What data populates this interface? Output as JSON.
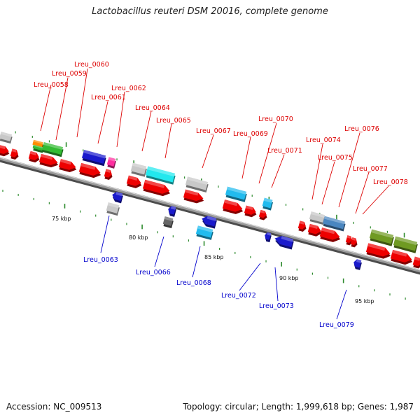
{
  "title": "Lactobacillus reuteri DSM 20016, complete genome",
  "footer": {
    "accession": "Accession: NC_009513",
    "summary": "Topology: circular; Length: 1,999,618 bp; Genes: 1,987"
  },
  "colors": {
    "forward_label": "#dd0000",
    "reverse_label": "#0000cc",
    "backbone": "#7a7a7a",
    "tick": "#2e8b2e"
  },
  "scale_labels": [
    "75 kbp",
    "80 kbp",
    "85 kbp",
    "90 kbp",
    "95 kbp"
  ],
  "forward_labels": [
    "Lreu_0058",
    "Lreu_0059",
    "Lreu_0060",
    "Lreu_0061",
    "Lreu_0062",
    "Lreu_0064",
    "Lreu_0065",
    "Lreu_0067",
    "Lreu_0069",
    "Lreu_0070",
    "Lreu_0071",
    "Lreu_0074",
    "Lreu_0075",
    "Lreu_0076",
    "Lreu_0077",
    "Lreu_0078"
  ],
  "reverse_labels": [
    "Lreu_0063",
    "Lreu_0066",
    "Lreu_0068",
    "Lreu_0072",
    "Lreu_0073",
    "Lreu_0079"
  ]
}
